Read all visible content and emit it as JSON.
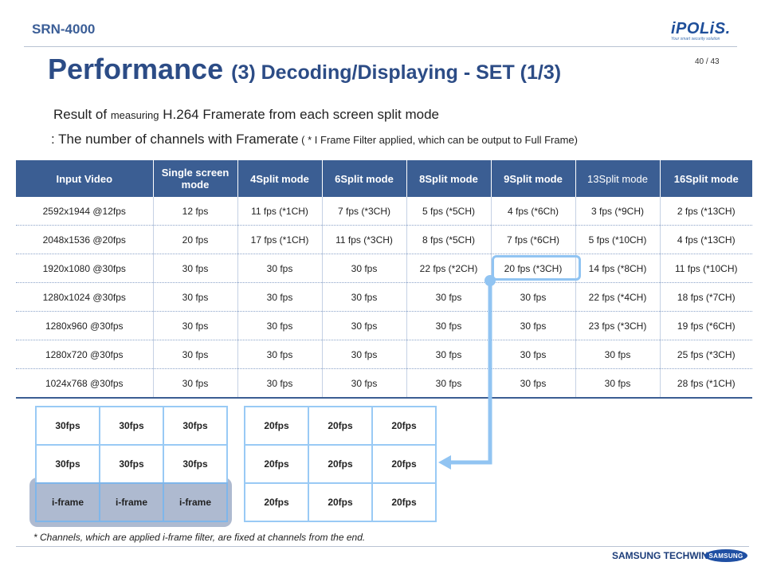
{
  "header": {
    "model": "SRN-4000",
    "logo_text": "iPOLiS.",
    "logo_tagline": "Your smart security solution",
    "page": "40 / 43"
  },
  "title": {
    "main": "Performance",
    "sub": "(3) Decoding/Displaying  - SET (1/3)"
  },
  "intro": {
    "line1_a": "Result of ",
    "line1_b": "measuring",
    "line1_c": " H.264 Framerate from each screen split mode",
    "line2_a": ": The number of channels with Framerate",
    "line2_b": " ( * I Frame Filter  applied, which can be output to Full Frame)"
  },
  "table": {
    "headers": [
      "Input Video",
      "Single screen mode",
      "4Split mode",
      "6Split mode",
      "8Split mode",
      "9Split mode",
      "13Split mode",
      "16Split mode"
    ],
    "rows": [
      [
        "2592x1944 @12fps",
        "12 fps",
        "11 fps (*1CH)",
        "7 fps (*3CH)",
        "5 fps (*5CH)",
        "4 fps (*6Ch)",
        "3 fps (*9CH)",
        "2 fps (*13CH)"
      ],
      [
        "2048x1536 @20fps",
        "20 fps",
        "17 fps (*1CH)",
        "11 fps (*3CH)",
        "8 fps (*5CH)",
        "7 fps (*6CH)",
        "5 fps (*10CH)",
        "4 fps (*13CH)"
      ],
      [
        "1920x1080 @30fps",
        "30 fps",
        "30 fps",
        "30 fps",
        "22 fps (*2CH)",
        "20 fps (*3CH)",
        "14 fps (*8CH)",
        "11 fps (*10CH)"
      ],
      [
        "1280x1024 @30fps",
        "30 fps",
        "30 fps",
        "30 fps",
        "30 fps",
        "30 fps",
        "22 fps (*4CH)",
        "18 fps (*7CH)"
      ],
      [
        "1280x960 @30fps",
        "30 fps",
        "30 fps",
        "30 fps",
        "30 fps",
        "30 fps",
        "23 fps (*3CH)",
        "19 fps  (*6CH)"
      ],
      [
        "1280x720 @30fps",
        "30 fps",
        "30 fps",
        "30 fps",
        "30 fps",
        "30 fps",
        "30 fps",
        "25 fps (*3CH)"
      ],
      [
        "1024x768 @30fps",
        "30 fps",
        "30 fps",
        "30 fps",
        "30 fps",
        "30 fps",
        "30 fps",
        "28 fps (*1CH)"
      ]
    ],
    "highlighted_cell": "20 fps (*3CH)"
  },
  "grid_a": [
    "30fps",
    "30fps",
    "30fps",
    "30fps",
    "30fps",
    "30fps",
    "i-frame",
    "i-frame",
    "i-frame"
  ],
  "grid_b": [
    "20fps",
    "20fps",
    "20fps",
    "20fps",
    "20fps",
    "20fps",
    "20fps",
    "20fps",
    "20fps"
  ],
  "footnote": "* Channels, which are applied i-frame filter, are fixed at channels from the end.",
  "footer": {
    "brand": "SAMSUNG TECHWIN",
    "samsung_logo": "SAMSUNG"
  },
  "colors": {
    "title": "#2c4c86",
    "table_header": "#3b5e93",
    "grid_border": "#99caf5",
    "iframe_shade": "#8c9dbc"
  }
}
